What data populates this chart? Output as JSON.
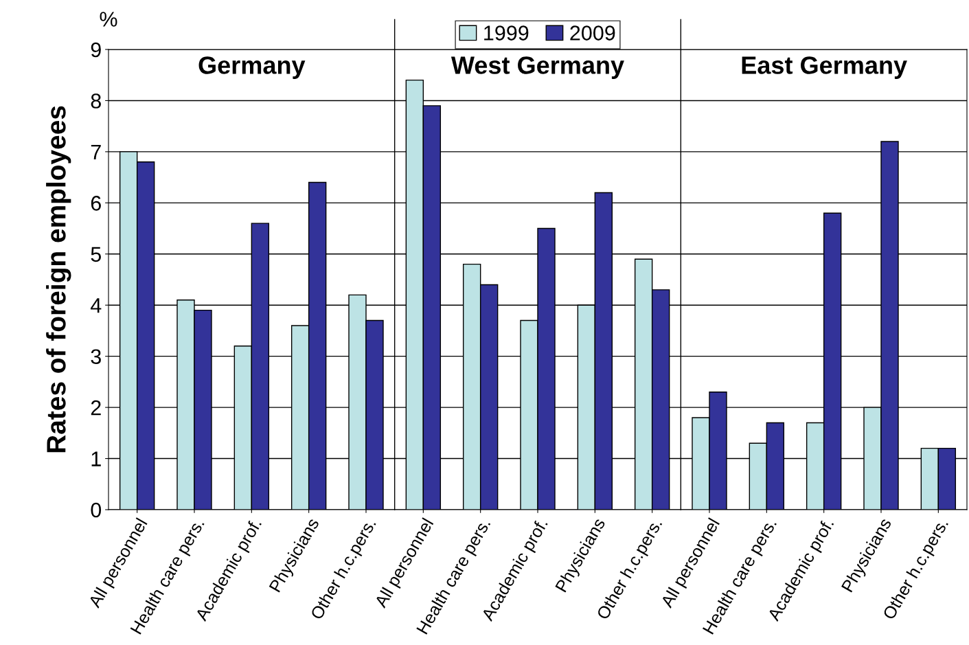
{
  "chart_data": {
    "type": "bar",
    "ylabel": "Rates of foreign employees",
    "annotations": [
      "%",
      "Germany",
      "West Germany",
      "East Germany"
    ],
    "categories": [
      "All personnel",
      "Health care pers.",
      "Academic prof.",
      "Physicians",
      "Other h.c.pers.",
      "All personnel",
      "Health care pers.",
      "Academic prof.",
      "Physicians",
      "Other h.c.pers.",
      "All personnel",
      "Health care pers.",
      "Academic prof.",
      "Physicians",
      "Other h.c.pers."
    ],
    "series": [
      {
        "name": "1999",
        "color": "#bde3e5",
        "values": [
          7.0,
          4.1,
          3.2,
          3.6,
          4.2,
          8.4,
          4.8,
          3.7,
          4.0,
          4.9,
          1.8,
          1.3,
          1.7,
          2.0,
          1.2
        ]
      },
      {
        "name": "2009",
        "color": "#333399",
        "values": [
          6.8,
          3.9,
          5.6,
          6.4,
          3.7,
          7.9,
          4.4,
          5.5,
          6.2,
          4.3,
          2.3,
          1.7,
          5.8,
          7.2,
          1.2
        ]
      }
    ],
    "ylim": [
      0,
      9
    ],
    "yticks": [
      0,
      1,
      2,
      3,
      4,
      5,
      6,
      7,
      8,
      9
    ],
    "grid": "y",
    "legend": "top"
  }
}
